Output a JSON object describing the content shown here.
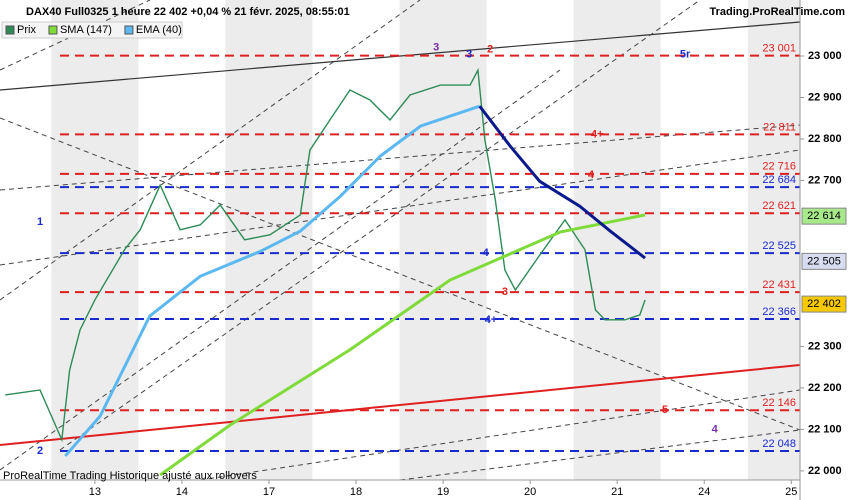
{
  "header": {
    "title": "DAX40 Full0325 1 heure 22 402 +0,04 % 21 févr. 2025, 08:55:01",
    "site": "Trading.ProRealTime.com",
    "footer": "ProRealTime Trading Historique ajusté aux rollovers"
  },
  "chart_data": {
    "type": "line",
    "xlim": [
      -1.09,
      8.1
    ],
    "ylim": [
      21978,
      23135
    ],
    "xticks": [
      {
        "value": 0,
        "label": "13"
      },
      {
        "value": 1,
        "label": "14"
      },
      {
        "value": 2,
        "label": "17"
      },
      {
        "value": 3,
        "label": "18"
      },
      {
        "value": 4,
        "label": "19"
      },
      {
        "value": 5,
        "label": "20"
      },
      {
        "value": 6,
        "label": "21"
      },
      {
        "value": 7,
        "label": "24"
      },
      {
        "value": 8,
        "label": "25"
      }
    ],
    "yticks": [
      {
        "value": 23000,
        "label": "23 000"
      },
      {
        "value": 22900,
        "label": "22 900"
      },
      {
        "value": 22800,
        "label": "22 800"
      },
      {
        "value": 22700,
        "label": "22 700"
      },
      {
        "value": 22300,
        "label": "22 300"
      },
      {
        "value": 22200,
        "label": "22 200"
      },
      {
        "value": 22100,
        "label": "22 100"
      },
      {
        "value": 22000,
        "label": "22 000"
      }
    ],
    "series": [
      {
        "name": "Prix",
        "color": "#2e8b57",
        "x": [
          -1.03,
          -0.63,
          -0.38,
          -0.29,
          -0.17,
          0,
          0.34,
          0.52,
          0.75,
          0.98,
          1.21,
          1.44,
          1.72,
          2.01,
          2.36,
          2.47,
          2.7,
          2.93,
          3.16,
          3.39,
          3.62,
          3.97,
          4.31,
          4.4,
          4.48,
          4.6,
          4.71,
          4.83,
          5.11,
          5.4,
          5.63,
          5.75,
          5.86,
          6.09,
          6.26,
          6.32
        ],
        "values": [
          22183,
          22195,
          22075,
          22243,
          22340,
          22412,
          22533,
          22581,
          22689,
          22581,
          22593,
          22641,
          22557,
          22569,
          22617,
          22773,
          22846,
          22918,
          22894,
          22846,
          22906,
          22930,
          22930,
          22966,
          22798,
          22653,
          22484,
          22436,
          22520,
          22605,
          22533,
          22388,
          22364,
          22364,
          22376,
          22412
        ]
      },
      {
        "name": "SMA (147)",
        "color": "#7fdb3a",
        "x": [
          0.75,
          1.55,
          2.93,
          4.08,
          5.35,
          6.32
        ],
        "values": [
          21990,
          22110,
          22292,
          22460,
          22576,
          22617
        ]
      },
      {
        "name": "EMA (40)",
        "color": "#5bb8f0",
        "down_color": "#0a1a8c",
        "x": [
          -0.34,
          0.06,
          0.63,
          1.21,
          1.9,
          2.36,
          2.82,
          3.28,
          3.74,
          4.42,
          4.77,
          5.11,
          5.57,
          5.92,
          6.32
        ],
        "values": [
          22036,
          22132,
          22373,
          22469,
          22529,
          22578,
          22662,
          22759,
          22831,
          22879,
          22783,
          22698,
          22638,
          22578,
          22513
        ]
      }
    ],
    "levels": [
      {
        "value": 23001,
        "label": "23 001",
        "color": "#e02020"
      },
      {
        "value": 22811,
        "label": "22 811",
        "color": "#e02020"
      },
      {
        "value": 22716,
        "label": "22 716",
        "color": "#e02020"
      },
      {
        "value": 22684,
        "label": "22 684",
        "color": "#1a2ad0"
      },
      {
        "value": 22621,
        "label": "22 621",
        "color": "#e02020"
      },
      {
        "value": 22525,
        "label": "22 525",
        "color": "#1a2ad0"
      },
      {
        "value": 22431,
        "label": "22 431",
        "color": "#e02020"
      },
      {
        "value": 22366,
        "label": "22 366",
        "color": "#1a2ad0"
      },
      {
        "value": 22146,
        "label": "22 146",
        "color": "#e02020"
      },
      {
        "value": 22048,
        "label": "22 048",
        "color": "#1a2ad0"
      }
    ],
    "value_boxes": [
      {
        "value": 22614,
        "label": "22 614",
        "color": "#a6e88a"
      },
      {
        "value": 22505,
        "label": "22 505",
        "color": "#d8dcf0"
      },
      {
        "value": 22402,
        "label": "22 402",
        "color": "#f5c800"
      }
    ],
    "annotations": [
      {
        "text": "3",
        "x": 3.92,
        "y": 23020,
        "color": "#7a2ca8"
      },
      {
        "text": "3",
        "x": 4.3,
        "y": 23003,
        "color": "#1a2ad0"
      },
      {
        "text": "2",
        "x": 4.54,
        "y": 23015,
        "color": "#e02020"
      },
      {
        "text": "5r",
        "x": 6.78,
        "y": 23003,
        "color": "#1a2ad0"
      },
      {
        "text": "4+",
        "x": 5.77,
        "y": 22811,
        "color": "#e02020"
      },
      {
        "text": "4",
        "x": 5.7,
        "y": 22713,
        "color": "#e02020"
      },
      {
        "text": "1",
        "x": -0.63,
        "y": 22600,
        "color": "#1a2ad0"
      },
      {
        "text": "4",
        "x": 4.49,
        "y": 22525,
        "color": "#1a2ad0"
      },
      {
        "text": "3",
        "x": 4.71,
        "y": 22431,
        "color": "#e02020"
      },
      {
        "text": "4+",
        "x": 4.55,
        "y": 22363,
        "color": "#1a2ad0"
      },
      {
        "text": "5",
        "x": 6.55,
        "y": 22146,
        "color": "#e02020"
      },
      {
        "text": "4",
        "x": 7.12,
        "y": 22100,
        "color": "#7a2ca8"
      },
      {
        "text": "2",
        "x": -0.63,
        "y": 22048,
        "color": "#1a2ad0"
      }
    ]
  }
}
